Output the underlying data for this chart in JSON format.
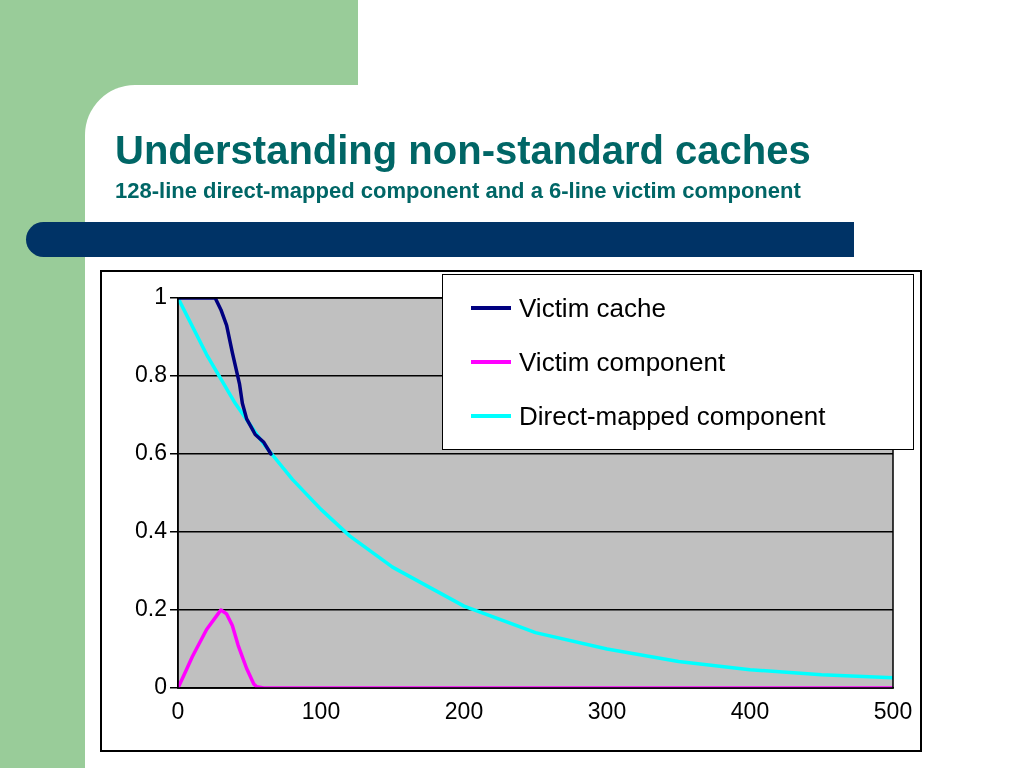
{
  "chart_data": {
    "type": "line",
    "title": "Understanding non-standard caches",
    "subtitle": "128-line direct-mapped component and a 6-line victim component",
    "xlim": [
      0,
      500
    ],
    "xticks": [
      0,
      100,
      200,
      300,
      400,
      500
    ],
    "ylim": [
      0,
      1
    ],
    "yticks": [
      0,
      0.2,
      0.4,
      0.6,
      0.8,
      1
    ],
    "grid": "y",
    "legend": "top right",
    "marker": "none",
    "line_style": "solid",
    "series": [
      {
        "name": "Victim cache",
        "color": "#000080",
        "x": [
          0,
          10,
          20,
          26,
          30,
          34,
          38,
          43,
          45,
          48,
          54,
          60,
          65
        ],
        "values": [
          1,
          1,
          1,
          1,
          0.97,
          0.93,
          0.86,
          0.78,
          0.73,
          0.69,
          0.65,
          0.63,
          0.6
        ]
      },
      {
        "name": "Victim component",
        "color": "#ff00ff",
        "x": [
          0,
          5,
          10,
          20,
          28,
          30,
          34,
          38,
          42,
          45,
          48,
          53,
          55,
          60,
          100,
          200,
          300,
          400,
          500
        ],
        "values": [
          0,
          0.04,
          0.08,
          0.15,
          0.19,
          0.2,
          0.19,
          0.16,
          0.11,
          0.08,
          0.05,
          0.01,
          0.003,
          0,
          0,
          0,
          0,
          0,
          0
        ]
      },
      {
        "name": "Direct-mapped component",
        "color": "#00ffff",
        "x": [
          0,
          20,
          40,
          60,
          80,
          100,
          120,
          150,
          200,
          250,
          300,
          350,
          400,
          450,
          500
        ],
        "values": [
          1,
          0.855,
          0.73,
          0.625,
          0.535,
          0.458,
          0.39,
          0.31,
          0.21,
          0.142,
          0.1,
          0.068,
          0.047,
          0.034,
          0.026
        ]
      }
    ]
  }
}
